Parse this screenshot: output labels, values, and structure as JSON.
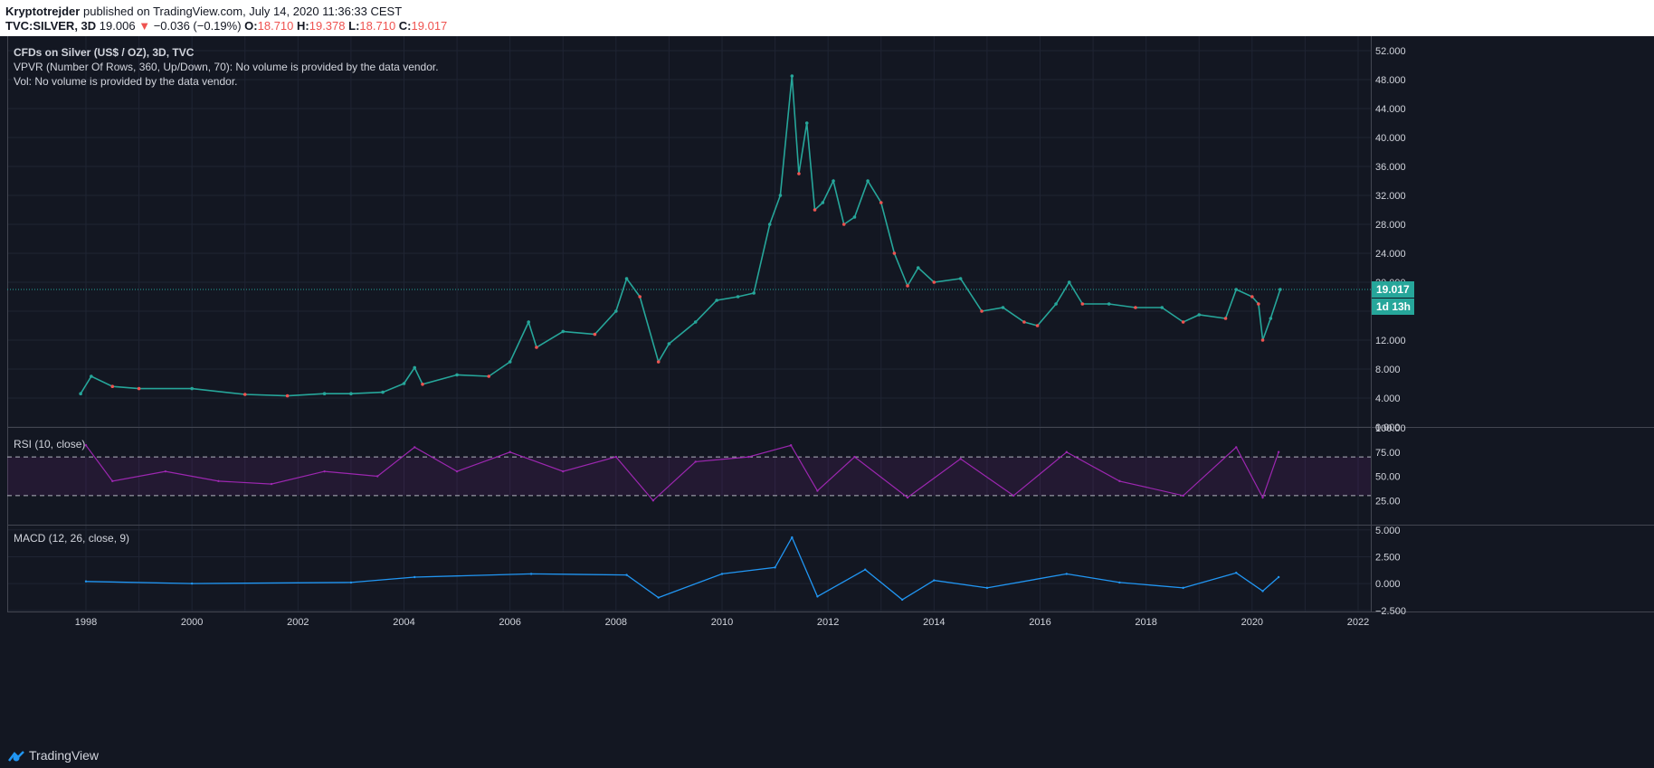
{
  "header": {
    "author": "Kryptotrejder",
    "published": "published on TradingView.com, July 14, 2020 11:36:33 CEST",
    "symbol": "TVC:SILVER, 3D",
    "last": "19.006",
    "change": "−0.036 (−0.19%)",
    "o_label": "O:",
    "o_val": "18.710",
    "h_label": "H:",
    "h_val": "19.378",
    "l_label": "L:",
    "l_val": "18.710",
    "c_label": "C:",
    "c_val": "19.017"
  },
  "main_pane": {
    "line1": "CFDs on Silver (US$ / OZ), 3D, TVC",
    "line2": "VPVR (Number Of Rows, 360, Up/Down, 70): No volume is provided by the data vendor.",
    "line3": "Vol: No volume is provided by the data vendor.",
    "price_badge": "19.017",
    "timer_badge": "1d 13h"
  },
  "rsi_pane": {
    "label": "RSI (10, close)"
  },
  "macd_pane": {
    "label": "MACD (12, 26, close, 9)"
  },
  "footer": {
    "brand": "TradingView"
  },
  "colors": {
    "bg": "#131722",
    "up": "#26a69a",
    "down": "#ef5350",
    "rsi": "#9c27b0",
    "macd": "#2196f3",
    "signal": "#ff6d00"
  },
  "chart_data": [
    {
      "type": "line",
      "name": "price",
      "x": [
        1997.9,
        1998.1,
        1998.5,
        1999.0,
        2000.0,
        2001.0,
        2001.8,
        2002.5,
        2003.0,
        2003.6,
        2004.0,
        2004.2,
        2004.35,
        2005.0,
        2005.6,
        2006.0,
        2006.35,
        2006.5,
        2007.0,
        2007.6,
        2008.0,
        2008.2,
        2008.45,
        2008.8,
        2009.0,
        2009.5,
        2009.9,
        2010.3,
        2010.6,
        2010.9,
        2011.1,
        2011.32,
        2011.45,
        2011.6,
        2011.75,
        2011.9,
        2012.1,
        2012.3,
        2012.5,
        2012.75,
        2013.0,
        2013.25,
        2013.5,
        2013.7,
        2014.0,
        2014.5,
        2014.9,
        2015.3,
        2015.7,
        2015.95,
        2016.3,
        2016.55,
        2016.8,
        2017.3,
        2017.8,
        2018.3,
        2018.7,
        2019.0,
        2019.5,
        2019.7,
        2020.0,
        2020.12,
        2020.2,
        2020.35,
        2020.53
      ],
      "y": [
        4.6,
        7.0,
        5.6,
        5.3,
        5.3,
        4.5,
        4.3,
        4.6,
        4.6,
        4.8,
        6.0,
        8.2,
        5.9,
        7.2,
        7.0,
        9.0,
        14.5,
        11.0,
        13.2,
        12.8,
        16.0,
        20.5,
        18.0,
        9.0,
        11.5,
        14.5,
        17.5,
        18.0,
        18.5,
        28.0,
        32.0,
        48.5,
        35.0,
        42.0,
        30.0,
        31.0,
        34.0,
        28.0,
        29.0,
        34.0,
        31.0,
        24.0,
        19.5,
        22.0,
        20.0,
        20.5,
        16.0,
        16.5,
        14.5,
        14.0,
        17.0,
        20.0,
        17.0,
        17.0,
        16.5,
        16.5,
        14.5,
        15.5,
        15.0,
        19.0,
        18.0,
        17.0,
        12.0,
        15.0,
        19.0
      ]
    },
    {
      "type": "line",
      "name": "RSI",
      "x": [
        1998.0,
        1998.5,
        1999.5,
        2000.5,
        2001.5,
        2002.5,
        2003.5,
        2004.2,
        2005.0,
        2006.0,
        2007.0,
        2008.0,
        2008.7,
        2009.5,
        2010.5,
        2011.3,
        2011.8,
        2012.5,
        2013.5,
        2014.5,
        2015.5,
        2016.5,
        2017.5,
        2018.7,
        2019.7,
        2020.2,
        2020.5
      ],
      "y": [
        82,
        45,
        55,
        45,
        42,
        55,
        50,
        80,
        55,
        75,
        55,
        70,
        25,
        65,
        70,
        82,
        35,
        70,
        28,
        68,
        30,
        75,
        45,
        30,
        80,
        28,
        75
      ],
      "ylim": [
        0,
        100
      ],
      "overbought": 70,
      "oversold": 30
    },
    {
      "type": "line",
      "name": "MACD",
      "x": [
        1998.0,
        2000.0,
        2003.0,
        2004.2,
        2006.4,
        2008.2,
        2008.8,
        2010.0,
        2011.0,
        2011.32,
        2011.8,
        2012.7,
        2013.4,
        2014.0,
        2015.0,
        2016.5,
        2017.5,
        2018.7,
        2019.7,
        2020.2,
        2020.5
      ],
      "y": [
        0.2,
        0.0,
        0.1,
        0.6,
        0.9,
        0.8,
        -1.3,
        0.9,
        1.5,
        4.3,
        -1.2,
        1.3,
        -1.5,
        0.3,
        -0.4,
        0.9,
        0.1,
        -0.4,
        1.0,
        -0.7,
        0.6
      ],
      "ylim": [
        -2.5,
        5
      ]
    }
  ]
}
